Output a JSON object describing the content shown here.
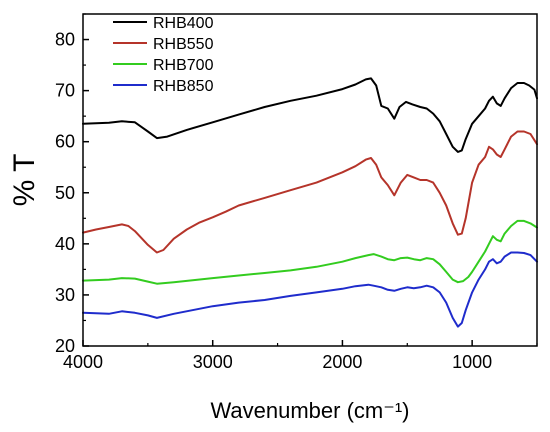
{
  "chart_data": {
    "type": "line",
    "title": "",
    "xlabel": "Wavenumber (cm⁻¹)",
    "ylabel": "% T",
    "xlim": [
      4000,
      500
    ],
    "ylim": [
      20,
      85
    ],
    "xticks": [
      4000,
      3000,
      2000,
      1000
    ],
    "yticks": [
      20,
      30,
      40,
      50,
      60,
      70,
      80
    ],
    "x_tick_labels": [
      "4000",
      "3000",
      "2000",
      "1000"
    ],
    "y_tick_labels": [
      "20",
      "30",
      "40",
      "50",
      "60",
      "70",
      "80"
    ],
    "grid": false,
    "legend_position": "top-left",
    "series": [
      {
        "name": "RHB400",
        "color": "#000000",
        "x": [
          4000,
          3800,
          3700,
          3600,
          3500,
          3430,
          3350,
          3200,
          3000,
          2800,
          2600,
          2400,
          2200,
          2000,
          1900,
          1820,
          1780,
          1740,
          1700,
          1650,
          1600,
          1560,
          1510,
          1460,
          1400,
          1350,
          1300,
          1250,
          1200,
          1150,
          1110,
          1080,
          1050,
          1000,
          950,
          900,
          870,
          840,
          810,
          780,
          750,
          700,
          650,
          600,
          560,
          520,
          500
        ],
        "y": [
          63.5,
          63.7,
          64.0,
          63.8,
          62.0,
          60.7,
          61.0,
          62.3,
          63.8,
          65.3,
          66.8,
          68.0,
          69.0,
          70.3,
          71.2,
          72.2,
          72.4,
          71.0,
          67.0,
          66.5,
          64.5,
          66.8,
          67.8,
          67.3,
          66.8,
          66.5,
          65.5,
          64.0,
          61.5,
          59.0,
          58.0,
          58.3,
          60.5,
          63.5,
          65.0,
          66.5,
          68.0,
          68.8,
          67.5,
          67.0,
          68.5,
          70.5,
          71.5,
          71.5,
          71.0,
          70.2,
          68.5
        ]
      },
      {
        "name": "RHB550",
        "color": "#b5342a",
        "x": [
          4000,
          3900,
          3800,
          3700,
          3650,
          3600,
          3500,
          3430,
          3380,
          3300,
          3200,
          3100,
          3000,
          2900,
          2800,
          2600,
          2400,
          2200,
          2000,
          1900,
          1820,
          1780,
          1740,
          1700,
          1650,
          1600,
          1550,
          1500,
          1450,
          1400,
          1350,
          1300,
          1250,
          1200,
          1150,
          1110,
          1080,
          1050,
          1000,
          950,
          900,
          870,
          840,
          810,
          780,
          750,
          700,
          650,
          600,
          550,
          500
        ],
        "y": [
          42.2,
          42.8,
          43.3,
          43.8,
          43.5,
          42.5,
          39.8,
          38.3,
          38.8,
          41.0,
          42.8,
          44.2,
          45.2,
          46.3,
          47.5,
          49.0,
          50.5,
          52.0,
          54.0,
          55.2,
          56.5,
          56.8,
          55.5,
          53.0,
          51.5,
          49.5,
          52.0,
          53.5,
          53.0,
          52.5,
          52.5,
          52.0,
          50.0,
          47.5,
          44.0,
          41.8,
          42.0,
          45.0,
          52.0,
          55.5,
          57.0,
          59.0,
          58.5,
          57.5,
          57.0,
          58.5,
          61.0,
          62.0,
          62.0,
          61.5,
          59.5
        ]
      },
      {
        "name": "RHB700",
        "color": "#33cc1f",
        "x": [
          4000,
          3800,
          3700,
          3600,
          3500,
          3430,
          3300,
          3000,
          2800,
          2600,
          2400,
          2200,
          2000,
          1900,
          1800,
          1760,
          1700,
          1650,
          1600,
          1550,
          1500,
          1450,
          1400,
          1350,
          1300,
          1250,
          1200,
          1150,
          1110,
          1070,
          1030,
          1000,
          950,
          900,
          870,
          840,
          810,
          780,
          750,
          700,
          650,
          600,
          550,
          500
        ],
        "y": [
          32.8,
          33.0,
          33.3,
          33.2,
          32.6,
          32.2,
          32.5,
          33.3,
          33.8,
          34.3,
          34.8,
          35.5,
          36.5,
          37.2,
          37.8,
          38.0,
          37.5,
          37.0,
          36.8,
          37.2,
          37.3,
          37.0,
          36.8,
          37.2,
          37.0,
          36.0,
          34.5,
          33.0,
          32.5,
          32.7,
          33.5,
          34.5,
          36.5,
          38.5,
          40.0,
          41.5,
          40.8,
          40.5,
          42.0,
          43.5,
          44.5,
          44.5,
          44.0,
          43.2
        ]
      },
      {
        "name": "RHB850",
        "color": "#1f2ccc",
        "x": [
          4000,
          3800,
          3700,
          3600,
          3500,
          3430,
          3300,
          3000,
          2800,
          2600,
          2400,
          2200,
          2000,
          1900,
          1800,
          1760,
          1700,
          1650,
          1600,
          1550,
          1500,
          1450,
          1400,
          1350,
          1300,
          1250,
          1200,
          1150,
          1110,
          1080,
          1050,
          1000,
          950,
          900,
          870,
          840,
          810,
          780,
          750,
          700,
          650,
          600,
          550,
          500
        ],
        "y": [
          26.5,
          26.3,
          26.8,
          26.5,
          26.0,
          25.5,
          26.3,
          27.8,
          28.5,
          29.0,
          29.8,
          30.5,
          31.2,
          31.7,
          32.0,
          31.8,
          31.5,
          31.0,
          30.8,
          31.2,
          31.5,
          31.3,
          31.5,
          31.8,
          31.5,
          30.5,
          28.5,
          25.5,
          23.8,
          24.5,
          27.0,
          30.5,
          33.0,
          35.0,
          36.5,
          37.0,
          36.2,
          36.5,
          37.5,
          38.3,
          38.3,
          38.2,
          37.8,
          36.5
        ]
      }
    ]
  }
}
